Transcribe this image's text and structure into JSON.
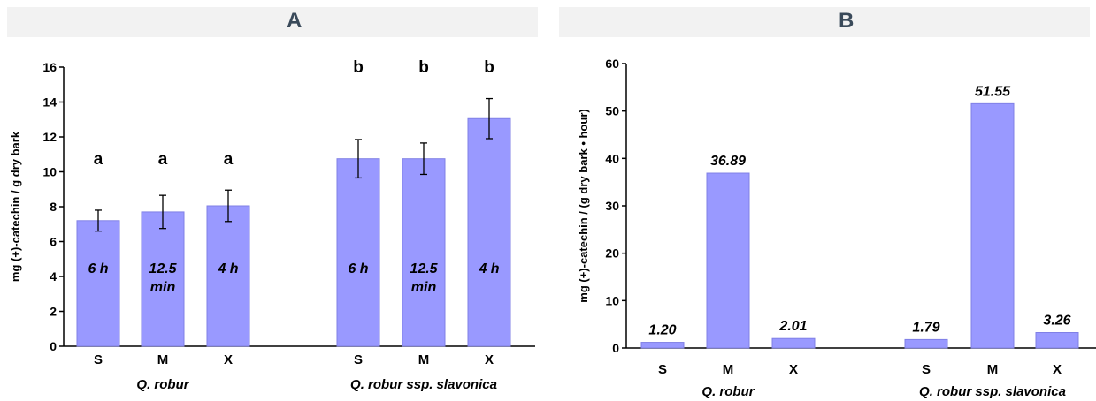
{
  "colors": {
    "bar": "#9999ff",
    "bar_edge": "#8080e6",
    "axis": "#000000",
    "band": "#f2f2f2"
  },
  "chart_data": [
    {
      "panel": "A",
      "type": "bar",
      "ylabel": "mg (+)-catechin / g dry bark",
      "ylim": [
        0,
        16
      ],
      "yticks": [
        0,
        2,
        4,
        6,
        8,
        10,
        12,
        14,
        16
      ],
      "grid": false,
      "groups": [
        {
          "name": "Q. robur",
          "bars": [
            {
              "category": "S",
              "value": 7.2,
              "error": 0.6,
              "letter": "a",
              "time": [
                "6 h"
              ]
            },
            {
              "category": "M",
              "value": 7.7,
              "error": 0.95,
              "letter": "a",
              "time": [
                "12.5",
                "min"
              ]
            },
            {
              "category": "X",
              "value": 8.05,
              "error": 0.9,
              "letter": "a",
              "time": [
                "4 h"
              ]
            }
          ]
        },
        {
          "name": "Q. robur ssp. slavonica",
          "bars": [
            {
              "category": "S",
              "value": 10.75,
              "error": 1.1,
              "letter": "b",
              "time": [
                "6 h"
              ]
            },
            {
              "category": "M",
              "value": 10.75,
              "error": 0.9,
              "letter": "b",
              "time": [
                "12.5",
                "min"
              ]
            },
            {
              "category": "X",
              "value": 13.05,
              "error": 1.15,
              "letter": "b",
              "time": [
                "4 h"
              ]
            }
          ]
        }
      ]
    },
    {
      "panel": "B",
      "type": "bar",
      "ylabel": "mg (+)-catechin / (g dry bark • hour)",
      "ylim": [
        0,
        60
      ],
      "yticks": [
        0,
        10,
        20,
        30,
        40,
        50,
        60
      ],
      "grid": false,
      "groups": [
        {
          "name": "Q. robur",
          "bars": [
            {
              "category": "S",
              "value": 1.2,
              "label": "1.20"
            },
            {
              "category": "M",
              "value": 36.89,
              "label": "36.89"
            },
            {
              "category": "X",
              "value": 2.01,
              "label": "2.01"
            }
          ]
        },
        {
          "name": "Q. robur ssp. slavonica",
          "bars": [
            {
              "category": "S",
              "value": 1.79,
              "label": "1.79"
            },
            {
              "category": "M",
              "value": 51.55,
              "label": "51.55"
            },
            {
              "category": "X",
              "value": 3.26,
              "label": "3.26"
            }
          ]
        }
      ]
    }
  ]
}
